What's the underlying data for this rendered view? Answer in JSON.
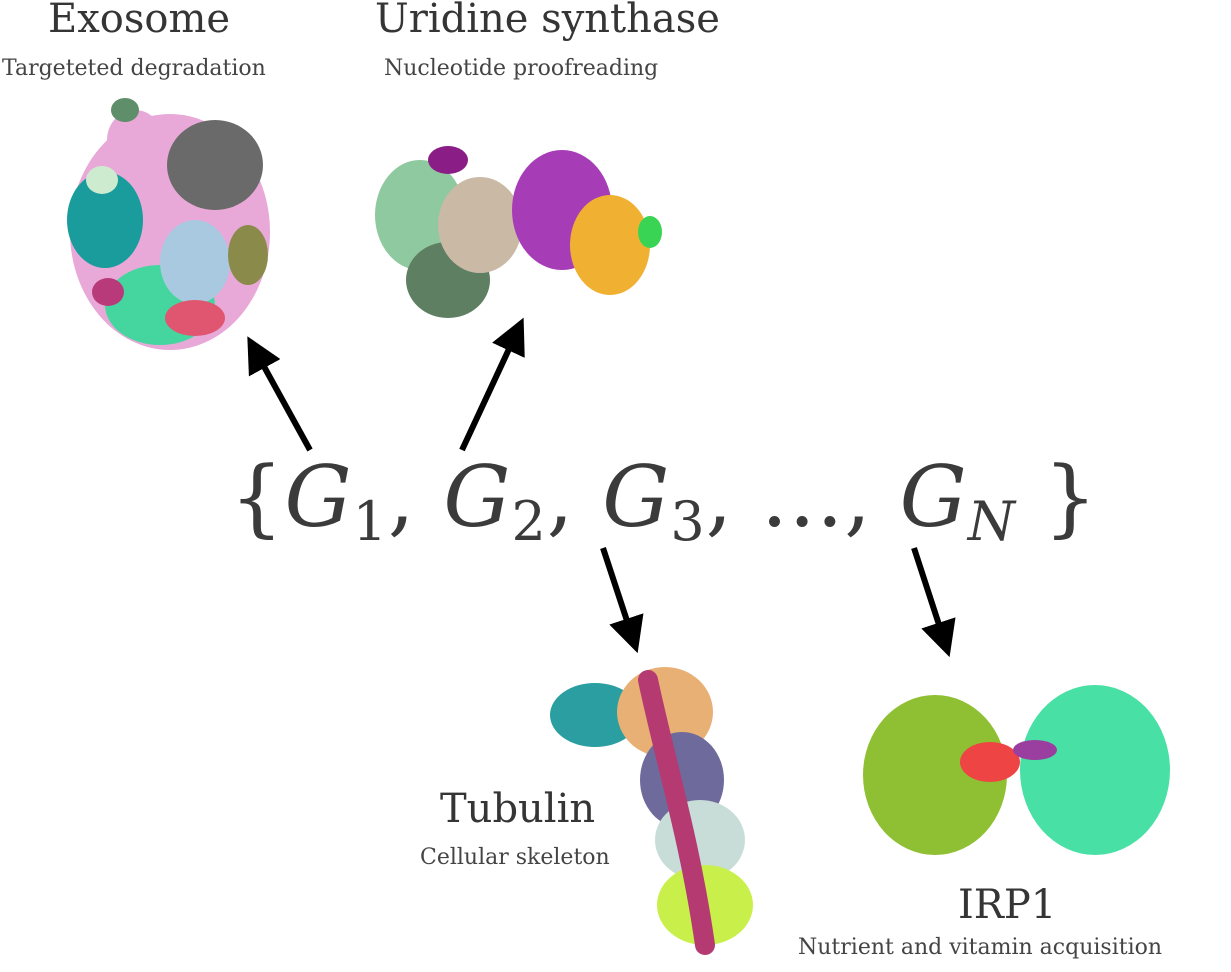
{
  "proteins": [
    {
      "id": "exosome",
      "title": "Exosome",
      "subtitle": "Targeteted degradation",
      "colors": [
        "#e8a9d8",
        "#6a6a6a",
        "#1a9c9c",
        "#45d6a0",
        "#a9c9e0",
        "#e05570",
        "#8a8a4a",
        "#b93a7a",
        "#cdeccf"
      ]
    },
    {
      "id": "uridine",
      "title": "Uridine synthase",
      "subtitle": "Nucleotide proofreading",
      "colors": [
        "#8fc9a0",
        "#5e7f62",
        "#c9b9a5",
        "#a63db7",
        "#f0b133",
        "#3ad455",
        "#8a1e86"
      ]
    },
    {
      "id": "tubulin",
      "title": "Tubulin",
      "subtitle": "Cellular skeleton",
      "colors": [
        "#2a9ea0",
        "#e8b074",
        "#6e6a9c",
        "#b53a72",
        "#c8ddd8",
        "#c8ef4a"
      ]
    },
    {
      "id": "irp1",
      "title": "IRP1",
      "subtitle": "Nutrient and vitamin acquisition",
      "colors": [
        "#8fbf32",
        "#48e0a5",
        "#ee4444",
        "#9a3fa0"
      ]
    }
  ],
  "formula": {
    "open": "{",
    "g": "G",
    "s1": "1",
    "s2": "2",
    "s3": "3",
    "sN": "N",
    "comma": ",",
    "ellipsis": "...",
    "close": "}"
  }
}
